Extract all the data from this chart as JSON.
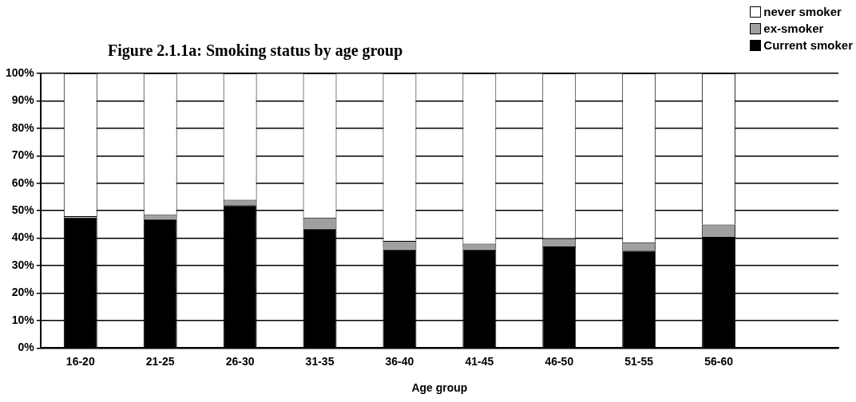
{
  "chart_data": {
    "type": "bar",
    "title": "Figure 2.1.1a: Smoking status by age group",
    "xlabel": "Age group",
    "stacked": true,
    "legend": "top right",
    "grid": "y",
    "categories": [
      "16-20",
      "21-25",
      "26-30",
      "31-35",
      "36-40",
      "41-45",
      "46-50",
      "51-55",
      "56-60",
      null
    ],
    "ylim": [
      0,
      100
    ],
    "yticks": [
      {
        "value": 0,
        "label": "0%"
      },
      {
        "value": 10,
        "label": "10%"
      },
      {
        "value": 20,
        "label": "20%"
      },
      {
        "value": 30,
        "label": "30%"
      },
      {
        "value": 40,
        "label": "40%"
      },
      {
        "value": 50,
        "label": "50%"
      },
      {
        "value": 60,
        "label": "60%"
      },
      {
        "value": 70,
        "label": "70%"
      },
      {
        "value": 80,
        "label": "80%"
      },
      {
        "value": 90,
        "label": "90%"
      },
      {
        "value": 100,
        "label": "100%"
      }
    ],
    "series": [
      {
        "name": "Current smoker",
        "color": "#000000",
        "values": [
          47.5,
          47,
          52,
          43.5,
          36,
          36,
          37,
          35.5,
          40.5,
          null
        ]
      },
      {
        "name": "ex-smoker",
        "color": "#a0a0a0",
        "values": [
          0.5,
          1.5,
          2,
          4,
          3,
          2,
          3,
          3,
          4.5,
          null
        ]
      },
      {
        "name": "never smoker",
        "color": "#ffffff",
        "values": [
          52,
          51.5,
          46,
          52.5,
          61,
          62,
          60,
          61.5,
          55,
          null
        ]
      }
    ]
  }
}
